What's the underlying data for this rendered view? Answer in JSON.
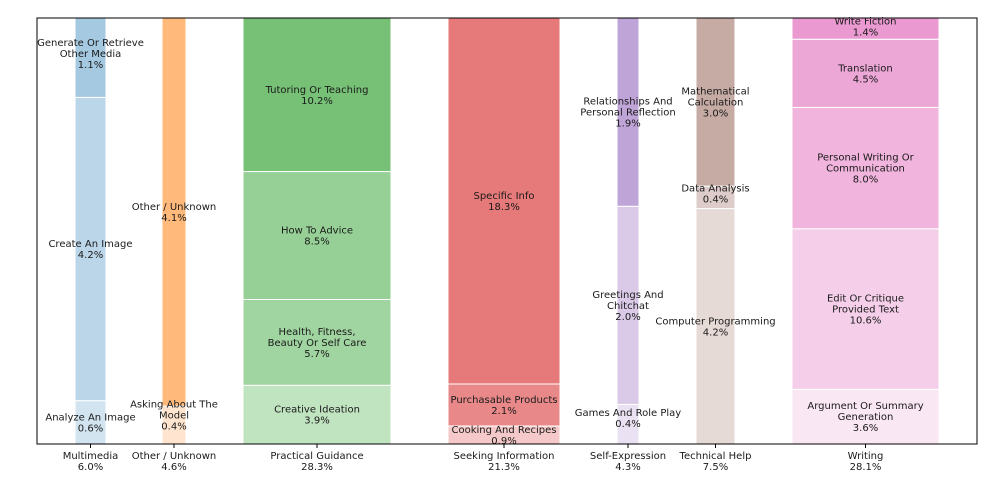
{
  "chart_data": {
    "type": "marimekko-stacked-bar",
    "title": "",
    "xlabel": "",
    "ylabel": "",
    "grid": false,
    "categories": [
      {
        "name": "Multimedia",
        "total": "6.0%",
        "share": 6.0,
        "color": "#1f77b4",
        "segments": [
          {
            "label": "Analyze An Image",
            "value": 0.6,
            "pct": "0.6%",
            "alpha": 0.2
          },
          {
            "label": "Create An Image",
            "value": 4.2,
            "pct": "4.2%",
            "alpha": 0.3
          },
          {
            "label": "Generate Or Retrieve Other Media",
            "value": 1.1,
            "pct": "1.1%",
            "alpha": 0.4
          }
        ]
      },
      {
        "name": "Other / Unknown",
        "total": "4.6%",
        "share": 4.6,
        "color": "#ff7f0e",
        "segments": [
          {
            "label": "Asking About The Model",
            "value": 0.4,
            "pct": "0.4%",
            "alpha": 0.2
          },
          {
            "label": "Other / Unknown",
            "value": 4.1,
            "pct": "4.1%",
            "alpha": 0.55
          }
        ]
      },
      {
        "name": "Practical Guidance",
        "total": "28.3%",
        "share": 28.3,
        "color": "#2ca02c",
        "segments": [
          {
            "label": "Creative Ideation",
            "value": 3.9,
            "pct": "3.9%",
            "alpha": 0.3
          },
          {
            "label": "Health, Fitness, Beauty Or Self Care",
            "value": 5.7,
            "pct": "5.7%",
            "alpha": 0.45
          },
          {
            "label": "How To Advice",
            "value": 8.5,
            "pct": "8.5%",
            "alpha": 0.5
          },
          {
            "label": "Tutoring Or Teaching",
            "value": 10.2,
            "pct": "10.2%",
            "alpha": 0.65
          }
        ]
      },
      {
        "name": "Seeking Information",
        "total": "21.3%",
        "share": 21.3,
        "color": "#d62728",
        "segments": [
          {
            "label": "Cooking And Recipes",
            "value": 0.9,
            "pct": "0.9%",
            "alpha": 0.25
          },
          {
            "label": "Purchasable Products",
            "value": 2.1,
            "pct": "2.1%",
            "alpha": 0.55
          },
          {
            "label": "Specific Info",
            "value": 18.3,
            "pct": "18.3%",
            "alpha": 0.62
          }
        ]
      },
      {
        "name": "Self-Expression",
        "total": "4.3%",
        "share": 4.3,
        "color": "#9467bd",
        "segments": [
          {
            "label": "Games And Role Play",
            "value": 0.4,
            "pct": "0.4%",
            "alpha": 0.2
          },
          {
            "label": "Greetings And Chitchat",
            "value": 2.0,
            "pct": "2.0%",
            "alpha": 0.35
          },
          {
            "label": "Relationships And Personal Reflection",
            "value": 1.9,
            "pct": "1.9%",
            "alpha": 0.6
          }
        ]
      },
      {
        "name": "Technical Help",
        "total": "7.5%",
        "share": 7.5,
        "color": "#8c564b",
        "segments": [
          {
            "label": "Computer Programming",
            "value": 4.2,
            "pct": "4.2%",
            "alpha": 0.22
          },
          {
            "label": "Data Analysis",
            "value": 0.4,
            "pct": "0.4%",
            "alpha": 0.3
          },
          {
            "label": "Mathematical Calculation",
            "value": 3.0,
            "pct": "3.0%",
            "alpha": 0.5
          }
        ]
      },
      {
        "name": "Writing",
        "total": "28.1%",
        "share": 28.1,
        "color": "#e377c2",
        "segments": [
          {
            "label": "Argument Or Summary Generation",
            "value": 3.6,
            "pct": "3.6%",
            "alpha": 0.18
          },
          {
            "label": "Edit Or Critique Provided Text",
            "value": 10.6,
            "pct": "10.6%",
            "alpha": 0.35
          },
          {
            "label": "Personal Writing Or Communication",
            "value": 8.0,
            "pct": "8.0%",
            "alpha": 0.55
          },
          {
            "label": "Translation",
            "value": 4.5,
            "pct": "4.5%",
            "alpha": 0.65
          },
          {
            "label": "Write Fiction",
            "value": 1.4,
            "pct": "1.4%",
            "alpha": 0.75
          }
        ]
      }
    ]
  }
}
